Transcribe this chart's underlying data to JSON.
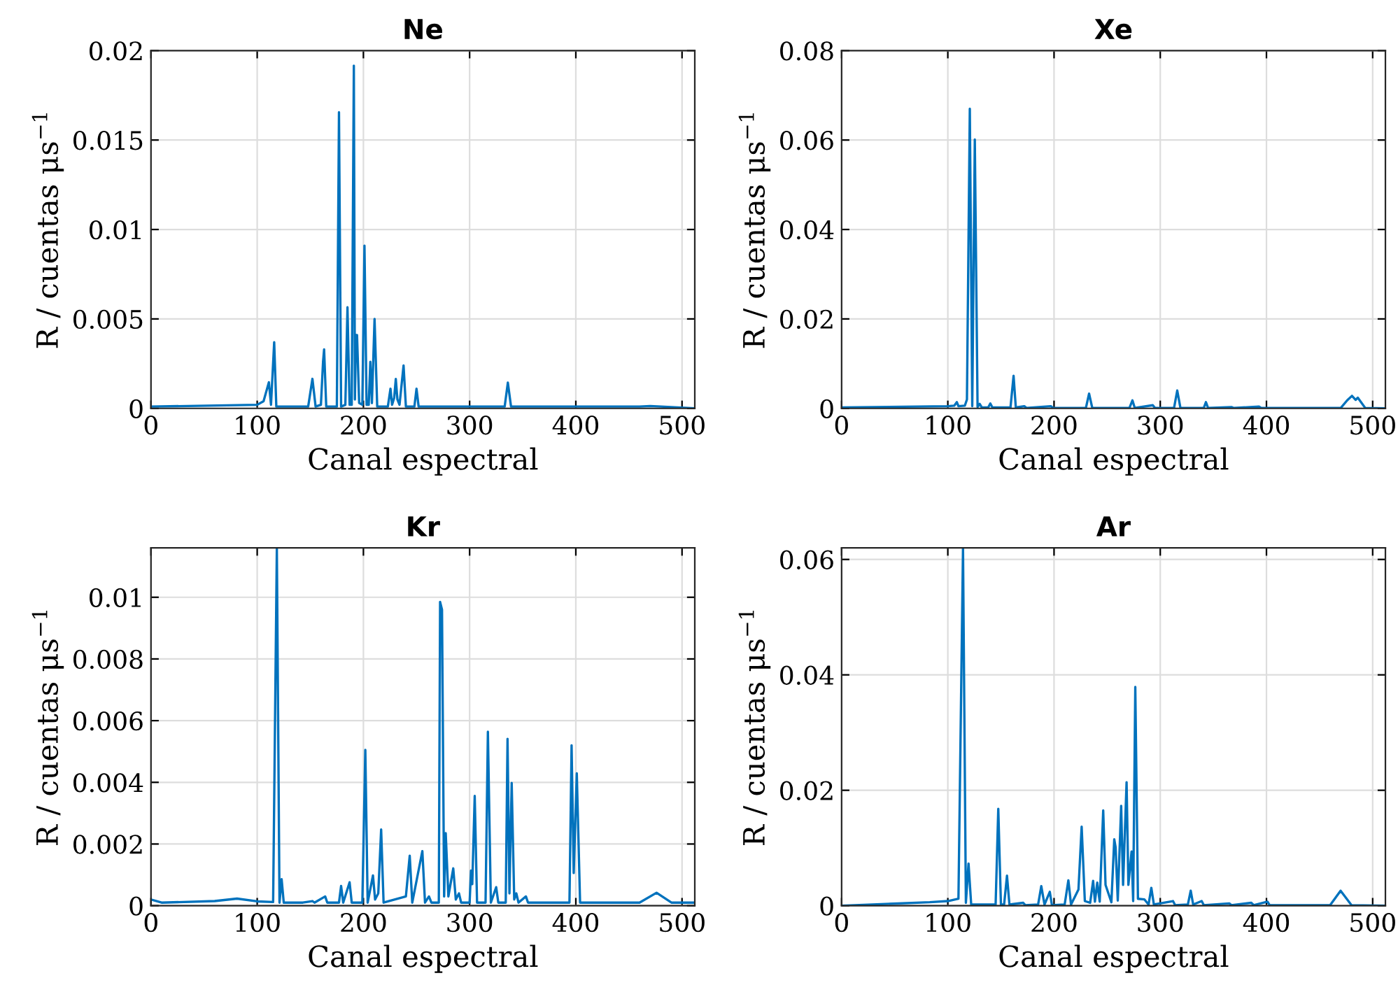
{
  "chart_data": [
    {
      "type": "line",
      "title": "Ne",
      "xlabel": "Canal espectral",
      "ylabel": "R / cuentas μs$^{−1}$",
      "xlim": [
        0,
        512
      ],
      "xticks": [
        0,
        100,
        200,
        300,
        400,
        500
      ],
      "ylim": [
        0,
        0.02
      ],
      "yticks": [
        0,
        0.005,
        0.01,
        0.015,
        0.02
      ],
      "grid": true,
      "x": [
        0,
        100,
        106,
        111,
        113,
        116,
        118,
        148,
        152,
        155,
        160,
        162,
        163,
        165,
        175,
        177,
        179,
        183,
        185,
        187,
        189,
        191,
        192,
        193,
        194,
        196,
        199,
        201,
        203,
        205,
        206.5,
        208,
        210.5,
        213,
        223,
        225.5,
        227,
        229,
        230.5,
        232,
        234,
        237.8,
        240,
        248,
        250,
        252,
        333,
        336,
        339,
        460,
        470,
        480,
        512
      ],
      "series": [
        {
          "color": "#0072bd",
          "values": [
            0.0001,
            0.0002,
            0.0004,
            0.00146,
            0.0002,
            0.0037,
            0.0001,
            0.0001,
            0.00165,
            0.0001,
            0.0002,
            0.0026,
            0.0033,
            0.0001,
            0.0001,
            0.01655,
            0.0001,
            0.0002,
            0.00565,
            0.0002,
            0.0002,
            0.01916,
            0.0005,
            0.0041,
            0.0041,
            0.0003,
            0.0002,
            0.0091,
            0.0002,
            0.0002,
            0.0026,
            0.0003,
            0.005,
            0.0001,
            0.0001,
            0.0011,
            0.0002,
            0.0006,
            0.00165,
            0.0005,
            0.0002,
            0.0024,
            0.0001,
            0.0001,
            0.0011,
            0.0001,
            0.0001,
            0.00144,
            0.0001,
            0.0001,
            0.00013,
            0.0001,
            0.0
          ]
        }
      ]
    },
    {
      "type": "line",
      "title": "Xe",
      "xlabel": "Canal espectral",
      "ylabel": "R / cuentas μs$^{−1}$",
      "xlim": [
        0,
        512
      ],
      "xticks": [
        0,
        100,
        200,
        300,
        400,
        500
      ],
      "ylim": [
        0,
        0.08
      ],
      "yticks": [
        0,
        0.02,
        0.04,
        0.06,
        0.08
      ],
      "grid": true,
      "x": [
        0,
        100,
        106,
        108.5,
        110,
        116,
        118,
        120.7,
        123,
        125.4,
        128,
        130,
        132,
        138,
        140,
        142,
        159,
        161.9,
        164,
        172,
        174,
        197,
        199,
        230,
        233,
        236,
        271,
        273.8,
        276,
        293,
        295,
        313,
        316,
        319,
        341,
        343,
        345,
        367,
        369,
        393,
        395,
        470,
        476,
        480.5,
        484,
        486,
        493,
        512
      ],
      "series": [
        {
          "color": "#0072bd",
          "values": [
            0.0002,
            0.0005,
            0.0006,
            0.0014,
            0.0005,
            0.0006,
            0.002,
            0.067,
            0.0005,
            0.0601,
            0.0003,
            0.001,
            0.0002,
            0.0002,
            0.0011,
            0.0002,
            0.0002,
            0.0073,
            0.0002,
            0.0005,
            0.0001,
            0.0005,
            0.0001,
            0.0001,
            0.0033,
            0.0001,
            0.0001,
            0.0018,
            0.0001,
            0.0007,
            0.0001,
            0.0001,
            0.004,
            0.0001,
            0.0001,
            0.0014,
            0.0001,
            0.0003,
            0.0001,
            0.0004,
            0.0001,
            0.0001,
            0.0018,
            0.0028,
            0.0019,
            0.0024,
            0.0001,
            0.0
          ]
        }
      ]
    },
    {
      "type": "line",
      "title": "Kr",
      "xlabel": "Canal espectral",
      "ylabel": "R / cuentas μs$^{−1}$",
      "xlim": [
        0,
        512
      ],
      "xticks": [
        0,
        100,
        200,
        300,
        400,
        500
      ],
      "ylim": [
        0,
        0.0116
      ],
      "yticks": [
        0,
        0.002,
        0.004,
        0.006,
        0.008,
        0.01
      ],
      "grid": true,
      "x": [
        0,
        10,
        60,
        81,
        100,
        115,
        118.5,
        121,
        123,
        125,
        143,
        152,
        154,
        164,
        166,
        177,
        179,
        181,
        187,
        189,
        199,
        201.8,
        204,
        209,
        211,
        214,
        216.7,
        219,
        240,
        243.6,
        246,
        255.5,
        258,
        261.7,
        264,
        271,
        272.2,
        274,
        276,
        277.5,
        280,
        284.6,
        287,
        290,
        292,
        300,
        301.3,
        302.5,
        304.8,
        307,
        315,
        317.2,
        320,
        325,
        327,
        334,
        335.7,
        337.5,
        339.6,
        342,
        344,
        346,
        353,
        355,
        394,
        396,
        398,
        400.9,
        404,
        460,
        476,
        490,
        512
      ],
      "series": [
        {
          "color": "#0072bd",
          "values": [
            0.0002,
            0.0001,
            0.00015,
            0.00023,
            0.00014,
            0.00012,
            0.0116,
            0.0001,
            0.00086,
            0.0001,
            0.0001,
            0.00015,
            0.0001,
            0.0003,
            0.0001,
            0.0001,
            0.00064,
            0.0001,
            0.00076,
            0.0001,
            0.0001,
            0.00505,
            0.0001,
            0.00098,
            0.0002,
            0.0004,
            0.00247,
            0.0001,
            0.0003,
            0.00162,
            0.0001,
            0.00177,
            0.0001,
            0.0003,
            0.0001,
            0.0001,
            0.00985,
            0.0096,
            0.0003,
            0.00235,
            0.0003,
            0.00121,
            0.0002,
            0.0004,
            0.0001,
            0.0001,
            0.00114,
            0.0007,
            0.00356,
            0.0001,
            0.0001,
            0.00564,
            0.0001,
            0.0006,
            0.0001,
            0.0001,
            0.00541,
            0.0004,
            0.00398,
            0.0002,
            0.0004,
            0.0001,
            0.0003,
            0.0001,
            0.0001,
            0.0052,
            0.00106,
            0.00429,
            0.0001,
            0.0001,
            0.00042,
            0.0001,
            0.0001
          ]
        }
      ]
    },
    {
      "type": "line",
      "title": "Ar",
      "xlabel": "Canal espectral",
      "ylabel": "R / cuentas μs$^{−1}$",
      "xlim": [
        0,
        512
      ],
      "xticks": [
        0,
        100,
        200,
        300,
        400,
        500
      ],
      "ylim": [
        0,
        0.062
      ],
      "yticks": [
        0,
        0.02,
        0.04,
        0.06
      ],
      "grid": true,
      "x": [
        0,
        83,
        100,
        110,
        114.3,
        117,
        119.5,
        122,
        145,
        147.5,
        150,
        153,
        155.7,
        158,
        171,
        173,
        185,
        188,
        191,
        196,
        198,
        210,
        213.5,
        216,
        223,
        226,
        229,
        234,
        236.8,
        238.5,
        240.7,
        243,
        246.3,
        248.5,
        254,
        256.7,
        258,
        260,
        263.2,
        265,
        268.3,
        270,
        273,
        274.5,
        276.5,
        279,
        285,
        289,
        291.6,
        294,
        312,
        314,
        326,
        328.7,
        331,
        339,
        341,
        365,
        367,
        385.7,
        388,
        401,
        403,
        460,
        469.8,
        480,
        512
      ],
      "series": [
        {
          "color": "#0072bd",
          "values": [
            0.0,
            0.0006,
            0.0008,
            0.0012,
            0.062,
            0.0005,
            0.0073,
            0.0002,
            0.0002,
            0.0168,
            0.0002,
            0.0002,
            0.0052,
            0.0002,
            0.0005,
            0.0001,
            0.0002,
            0.0034,
            0.0002,
            0.0024,
            0.0001,
            0.0002,
            0.0044,
            0.0002,
            0.0028,
            0.0137,
            0.0008,
            0.0005,
            0.0043,
            0.0007,
            0.004,
            0.0007,
            0.0165,
            0.0036,
            0.0006,
            0.0115,
            0.0101,
            0.0009,
            0.0173,
            0.0036,
            0.0214,
            0.0036,
            0.0094,
            0.0008,
            0.0379,
            0.0012,
            0.0011,
            0.0002,
            0.0031,
            0.0002,
            0.0008,
            0.0001,
            0.0002,
            0.0026,
            0.0002,
            0.0008,
            0.0001,
            0.0004,
            0.0001,
            0.0005,
            0.0001,
            0.0007,
            0.0001,
            0.0001,
            0.0026,
            0.0001,
            0.0
          ]
        }
      ]
    }
  ]
}
